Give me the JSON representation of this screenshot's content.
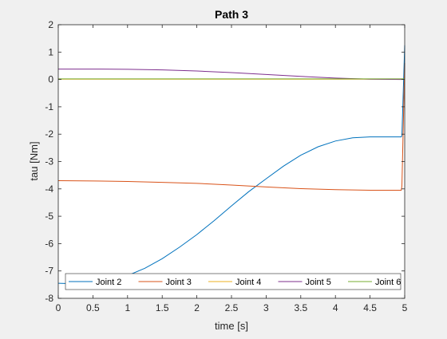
{
  "chart_data": {
    "type": "line",
    "title": "Path 3",
    "xlabel": "time [s]",
    "ylabel": "tau [Nm]",
    "xlim": [
      0,
      5
    ],
    "ylim": [
      -8,
      2
    ],
    "xticks": [
      0,
      0.5,
      1,
      1.5,
      2,
      2.5,
      3,
      3.5,
      4,
      4.5,
      5
    ],
    "xtick_labels": [
      "0",
      "0.5",
      "1",
      "1.5",
      "2",
      "2.5",
      "3",
      "3.5",
      "4",
      "4.5",
      "5"
    ],
    "yticks": [
      -8,
      -7,
      -6,
      -5,
      -4,
      -3,
      -2,
      -1,
      0,
      1,
      2
    ],
    "ytick_labels": [
      "-8",
      "-7",
      "-6",
      "-5",
      "-4",
      "-3",
      "-2",
      "-1",
      "0",
      "1",
      "2"
    ],
    "grid": false,
    "legend": {
      "placement": "bottom",
      "orientation": "horizontal"
    },
    "series": [
      {
        "name": "Joint 2",
        "color": "#0072BD",
        "x": [
          0,
          0.25,
          0.5,
          0.75,
          1,
          1.25,
          1.5,
          1.75,
          2,
          2.25,
          2.5,
          2.75,
          3,
          3.25,
          3.5,
          3.75,
          4,
          4.25,
          4.5,
          4.7,
          4.95,
          4.96,
          5
        ],
        "y": [
          -7.45,
          -7.47,
          -7.45,
          -7.35,
          -7.17,
          -6.9,
          -6.55,
          -6.13,
          -5.67,
          -5.16,
          -4.62,
          -4.1,
          -3.63,
          -3.17,
          -2.77,
          -2.46,
          -2.25,
          -2.13,
          -2.1,
          -2.1,
          -2.1,
          -2.05,
          1.25
        ]
      },
      {
        "name": "Joint 3",
        "color": "#D95319",
        "x": [
          0,
          0.5,
          1,
          1.5,
          2,
          2.5,
          3,
          3.5,
          4,
          4.5,
          4.7,
          4.95,
          4.96,
          5
        ],
        "y": [
          -3.7,
          -3.71,
          -3.73,
          -3.76,
          -3.8,
          -3.86,
          -3.93,
          -3.99,
          -4.03,
          -4.05,
          -4.05,
          -4.05,
          -3.9,
          0.6
        ]
      },
      {
        "name": "Joint 4",
        "color": "#EDB120",
        "x": [
          0,
          1,
          2,
          3,
          4,
          4.95,
          5
        ],
        "y": [
          0.01,
          0.01,
          0.01,
          0.01,
          0.01,
          0.01,
          0.02
        ]
      },
      {
        "name": "Joint 5",
        "color": "#7E2F8E",
        "x": [
          0,
          0.5,
          1,
          1.5,
          2,
          2.5,
          3,
          3.5,
          4,
          4.5,
          4.95,
          5
        ],
        "y": [
          0.38,
          0.38,
          0.37,
          0.35,
          0.31,
          0.25,
          0.18,
          0.11,
          0.05,
          0.01,
          0.0,
          0.01
        ]
      },
      {
        "name": "Joint 6",
        "color": "#77AC30",
        "x": [
          0,
          1,
          2,
          3,
          4,
          4.95,
          5
        ],
        "y": [
          0.02,
          0.02,
          0.02,
          0.02,
          0.02,
          0.02,
          0.02
        ]
      }
    ]
  }
}
